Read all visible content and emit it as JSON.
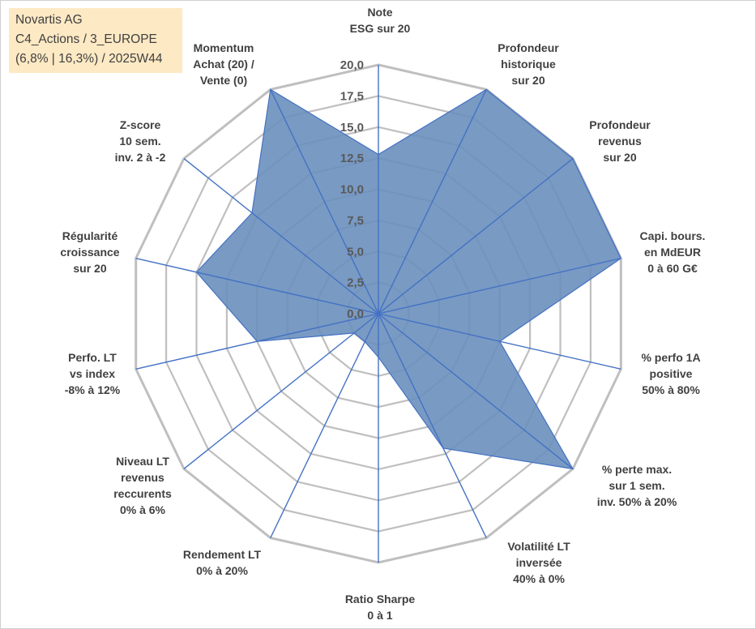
{
  "info_box": {
    "line1": "Novartis AG",
    "line2": "C4_Actions / 3_EUROPE",
    "line3": "(6,8% | 16,3%) / 2025W44"
  },
  "chart_data": {
    "type": "radar",
    "title": "Novartis AG",
    "rmin": 0,
    "rmax": 20,
    "ticks": [
      "0,0",
      "2,5",
      "5,0",
      "7,5",
      "10,0",
      "12,5",
      "15,0",
      "17,5",
      "20,0"
    ],
    "categories": [
      [
        "Note",
        "ESG sur 20"
      ],
      [
        "Profondeur",
        "historique",
        "sur 20"
      ],
      [
        "Profondeur",
        "revenus",
        "sur 20"
      ],
      [
        "Capi. bours.",
        "en MdEUR",
        "0 à 60 G€"
      ],
      [
        "% perfo 1A",
        "positive",
        "50% à 80%"
      ],
      [
        "% perte max.",
        "sur 1 sem.",
        "inv. 50% à 20%"
      ],
      [
        "Volatilité LT",
        "inversée",
        "40% à 0%"
      ],
      [
        "Ratio Sharpe",
        "0 à 1"
      ],
      [
        "Rendement LT",
        "0% à 20%"
      ],
      [
        "Niveau LT",
        "revenus",
        "reccurents",
        "0% à 6%"
      ],
      [
        "Perfo. LT",
        "vs index",
        "-8% à 12%"
      ],
      [
        "Régularité",
        "croissance",
        "sur 20"
      ],
      [
        "Z-score",
        "10 sem.",
        "inv. 2 à -2"
      ],
      [
        "Momentum",
        "Achat (20) /",
        "Vente (0)"
      ]
    ],
    "series": [
      {
        "name": "Novartis AG",
        "values": [
          12.8,
          20,
          20,
          20,
          10,
          20,
          12,
          3.5,
          2.5,
          2.5,
          10,
          15,
          13,
          20
        ],
        "fill": "#6a8fbd",
        "stroke": "#4472c4"
      }
    ],
    "grid_color": "#bfbfbf",
    "spoke_color": "#4472c4"
  }
}
